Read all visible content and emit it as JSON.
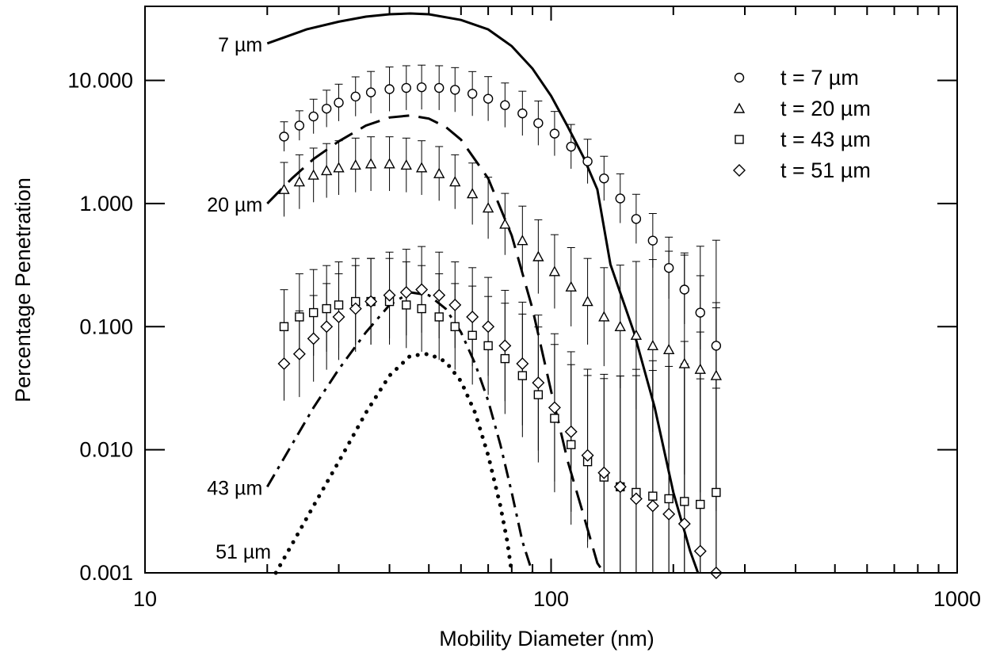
{
  "chart_data": {
    "type": "scatter",
    "xlabel": "Mobility Diameter (nm)",
    "ylabel": "Percentage Penetration",
    "x_scale": "log",
    "y_scale": "log",
    "xlim": [
      10,
      1000
    ],
    "ylim": [
      0.001,
      40
    ],
    "x_ticks": [
      {
        "value": 10,
        "label": "10"
      },
      {
        "value": 100,
        "label": "100"
      },
      {
        "value": 1000,
        "label": "1000"
      }
    ],
    "y_ticks": [
      {
        "value": 0.001,
        "label": "0.001"
      },
      {
        "value": 0.01,
        "label": "0.010"
      },
      {
        "value": 0.1,
        "label": "0.100"
      },
      {
        "value": 1,
        "label": "1.000"
      },
      {
        "value": 10,
        "label": "10.000"
      }
    ],
    "legend_position": "top-right",
    "series": [
      {
        "name": "t = 7 µm",
        "marker": "circle",
        "x": [
          22,
          24,
          26,
          28,
          30,
          33,
          36,
          40,
          44,
          48,
          53,
          58,
          64,
          70,
          77,
          85,
          93,
          102,
          112,
          123,
          135,
          148,
          162,
          178,
          195,
          213,
          233,
          255
        ],
        "y": [
          3.5,
          4.3,
          5.1,
          5.9,
          6.6,
          7.4,
          8.0,
          8.5,
          8.7,
          8.8,
          8.7,
          8.4,
          7.8,
          7.1,
          6.3,
          5.4,
          4.5,
          3.7,
          2.9,
          2.2,
          1.6,
          1.1,
          0.75,
          0.5,
          0.3,
          0.2,
          0.13,
          0.07
        ],
        "err": [
          0.12,
          0.12,
          0.14,
          0.15,
          0.15,
          0.16,
          0.17,
          0.18,
          0.18,
          0.18,
          0.18,
          0.18,
          0.18,
          0.18,
          0.18,
          0.18,
          0.18,
          0.18,
          0.18,
          0.18,
          0.18,
          0.2,
          0.2,
          0.22,
          0.25,
          0.28,
          0.3,
          0.35
        ]
      },
      {
        "name": "t = 20 µm",
        "marker": "triangle",
        "x": [
          22,
          24,
          26,
          28,
          30,
          33,
          36,
          40,
          44,
          48,
          53,
          58,
          64,
          70,
          77,
          85,
          93,
          102,
          112,
          123,
          135,
          148,
          162,
          178,
          195,
          213,
          233,
          255
        ],
        "y": [
          1.3,
          1.5,
          1.7,
          1.85,
          1.95,
          2.05,
          2.1,
          2.1,
          2.05,
          1.95,
          1.75,
          1.5,
          1.2,
          0.92,
          0.68,
          0.5,
          0.37,
          0.28,
          0.21,
          0.16,
          0.12,
          0.1,
          0.085,
          0.07,
          0.065,
          0.05,
          0.045,
          0.04
        ],
        "err": [
          0.22,
          0.22,
          0.22,
          0.22,
          0.22,
          0.22,
          0.22,
          0.22,
          0.22,
          0.22,
          0.22,
          0.22,
          0.25,
          0.25,
          0.25,
          0.28,
          0.3,
          0.3,
          0.32,
          0.35,
          0.4,
          0.5,
          0.6,
          0.7,
          0.8,
          0.9,
          1.0,
          1.1
        ]
      },
      {
        "name": "t = 43 µm",
        "marker": "square",
        "x": [
          22,
          24,
          26,
          28,
          30,
          33,
          36,
          40,
          44,
          48,
          53,
          58,
          64,
          70,
          77,
          85,
          93,
          102,
          112,
          123,
          135,
          148,
          162,
          178,
          195,
          213,
          233,
          255
        ],
        "y": [
          0.1,
          0.12,
          0.13,
          0.14,
          0.15,
          0.16,
          0.16,
          0.16,
          0.15,
          0.14,
          0.12,
          0.1,
          0.085,
          0.07,
          0.055,
          0.04,
          0.028,
          0.018,
          0.011,
          0.008,
          0.006,
          0.005,
          0.0045,
          0.0042,
          0.004,
          0.0038,
          0.0036,
          0.0045
        ],
        "err": [
          0.3,
          0.35,
          0.35,
          0.35,
          0.35,
          0.35,
          0.35,
          0.35,
          0.35,
          0.35,
          0.35,
          0.35,
          0.4,
          0.4,
          0.45,
          0.5,
          0.55,
          0.6,
          0.65,
          0.7,
          0.8,
          0.9,
          1.0,
          1.1,
          1.2,
          1.3,
          1.4,
          1.5
        ]
      },
      {
        "name": "t = 51 µm",
        "marker": "diamond",
        "x": [
          22,
          24,
          26,
          28,
          30,
          33,
          36,
          40,
          44,
          48,
          53,
          58,
          64,
          70,
          77,
          85,
          93,
          102,
          112,
          123,
          135,
          148,
          162,
          178,
          195,
          213,
          233,
          255
        ],
        "y": [
          0.05,
          0.06,
          0.08,
          0.1,
          0.12,
          0.14,
          0.16,
          0.18,
          0.19,
          0.2,
          0.18,
          0.15,
          0.12,
          0.1,
          0.07,
          0.05,
          0.035,
          0.022,
          0.014,
          0.009,
          0.0065,
          0.005,
          0.004,
          0.0035,
          0.003,
          0.0025,
          0.0015,
          0.001
        ],
        "err": [
          0.3,
          0.35,
          0.35,
          0.35,
          0.35,
          0.35,
          0.35,
          0.35,
          0.35,
          0.35,
          0.35,
          0.35,
          0.4,
          0.4,
          0.45,
          0.5,
          0.55,
          0.6,
          0.65,
          0.7,
          0.8,
          0.9,
          1.0,
          1.1,
          1.2,
          1.3,
          1.4,
          1.5
        ]
      }
    ],
    "model_curves": [
      {
        "label": "7 µm",
        "style": "solid",
        "x": [
          20,
          25,
          30,
          35,
          40,
          45,
          50,
          60,
          70,
          80,
          90,
          100,
          110,
          120,
          130,
          140,
          160,
          180,
          200,
          220,
          230
        ],
        "y": [
          20,
          26,
          30,
          33,
          34.5,
          35,
          34.5,
          31,
          26,
          19,
          12.5,
          7.5,
          4.2,
          2.4,
          1.3,
          0.32,
          0.09,
          0.022,
          0.0045,
          0.0015,
          0.001
        ]
      },
      {
        "label": "20 µm",
        "style": "dashed",
        "x": [
          20,
          23,
          26,
          30,
          35,
          40,
          45,
          50,
          55,
          60,
          70,
          80,
          90,
          100,
          110,
          120,
          130,
          135
        ],
        "y": [
          1.0,
          1.6,
          2.3,
          3.2,
          4.3,
          5.0,
          5.2,
          4.9,
          4.2,
          3.3,
          1.6,
          0.55,
          0.14,
          0.03,
          0.008,
          0.003,
          0.0012,
          0.001
        ]
      },
      {
        "label": "43 µm",
        "style": "dash-dot",
        "x": [
          20,
          23,
          26,
          30,
          35,
          40,
          45,
          50,
          55,
          60,
          65,
          70,
          75,
          80,
          85,
          90
        ],
        "y": [
          0.005,
          0.011,
          0.022,
          0.045,
          0.09,
          0.15,
          0.19,
          0.18,
          0.14,
          0.09,
          0.05,
          0.025,
          0.011,
          0.0045,
          0.0018,
          0.0008
        ]
      },
      {
        "label": "51 µm",
        "style": "dotted",
        "x": [
          21,
          23,
          26,
          30,
          35,
          40,
          45,
          50,
          55,
          60,
          65,
          70,
          75,
          78,
          80
        ],
        "y": [
          0.001,
          0.0017,
          0.0035,
          0.008,
          0.02,
          0.04,
          0.058,
          0.06,
          0.052,
          0.036,
          0.02,
          0.009,
          0.0035,
          0.0018,
          0.001
        ]
      }
    ]
  }
}
